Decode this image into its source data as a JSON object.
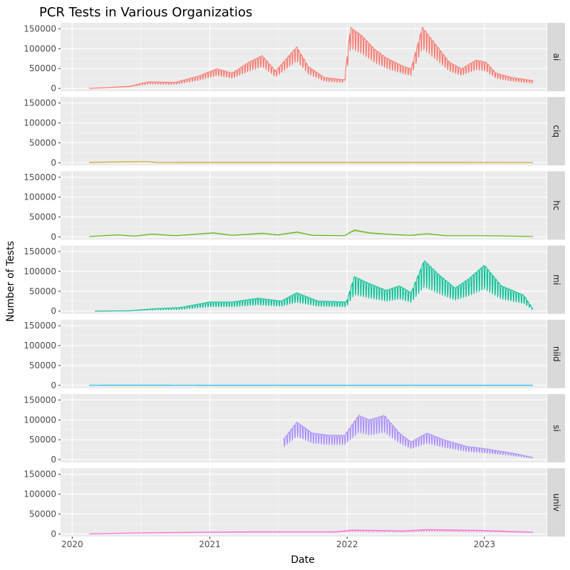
{
  "chart_data": {
    "type": "line",
    "title": "PCR Tests in Various Organizatios",
    "xlabel": "Date",
    "ylabel": "Number of Tests",
    "x_domain": [
      "2019-12-01",
      "2023-06-15"
    ],
    "ylim": [
      -7000,
      165000
    ],
    "y_ticks": [
      {
        "value": 0,
        "label": "0"
      },
      {
        "value": 50000,
        "label": "50000"
      },
      {
        "value": 100000,
        "label": "100000"
      },
      {
        "value": 150000,
        "label": "150000"
      }
    ],
    "x_ticks": [
      {
        "date": "2020-01-01",
        "label": "2020"
      },
      {
        "date": "2021-01-01",
        "label": "2021"
      },
      {
        "date": "2022-01-01",
        "label": "2022"
      },
      {
        "date": "2023-01-01",
        "label": "2023"
      }
    ],
    "grid": true,
    "series": [
      {
        "name": "ai",
        "color": "#F8766D",
        "start": "2020-02-15",
        "end": "2023-05-10",
        "weekly_oscillation": 0.28,
        "points": [
          [
            "2020-02-15",
            0
          ],
          [
            "2020-04-01",
            2000
          ],
          [
            "2020-06-01",
            5000
          ],
          [
            "2020-07-20",
            15000
          ],
          [
            "2020-10-01",
            14000
          ],
          [
            "2020-12-01",
            28000
          ],
          [
            "2021-01-20",
            45000
          ],
          [
            "2021-03-01",
            35000
          ],
          [
            "2021-04-15",
            60000
          ],
          [
            "2021-05-20",
            75000
          ],
          [
            "2021-06-25",
            40000
          ],
          [
            "2021-08-20",
            95000
          ],
          [
            "2021-09-20",
            50000
          ],
          [
            "2021-11-01",
            25000
          ],
          [
            "2021-12-25",
            20000
          ],
          [
            "2022-01-10",
            140000
          ],
          [
            "2022-02-10",
            120000
          ],
          [
            "2022-03-15",
            90000
          ],
          [
            "2022-04-15",
            70000
          ],
          [
            "2022-06-01",
            50000
          ],
          [
            "2022-06-20",
            45000
          ],
          [
            "2022-07-20",
            140000
          ],
          [
            "2022-08-25",
            100000
          ],
          [
            "2022-09-30",
            60000
          ],
          [
            "2022-11-01",
            45000
          ],
          [
            "2022-12-10",
            65000
          ],
          [
            "2023-01-05",
            60000
          ],
          [
            "2023-02-01",
            35000
          ],
          [
            "2023-03-15",
            25000
          ],
          [
            "2023-05-10",
            18000
          ]
        ]
      },
      {
        "name": "ciq",
        "color": "#C49A00",
        "start": "2020-02-15",
        "end": "2023-05-10",
        "weekly_oscillation": 0.05,
        "points": [
          [
            "2020-02-15",
            500
          ],
          [
            "2020-04-15",
            1500
          ],
          [
            "2020-07-15",
            2500
          ],
          [
            "2020-08-15",
            500
          ],
          [
            "2023-05-10",
            300
          ]
        ]
      },
      {
        "name": "hc",
        "color": "#53B400",
        "start": "2020-02-15",
        "end": "2023-05-10",
        "weekly_oscillation": 0.12,
        "points": [
          [
            "2020-02-15",
            1000
          ],
          [
            "2020-05-01",
            5000
          ],
          [
            "2020-06-15",
            2000
          ],
          [
            "2020-08-01",
            7000
          ],
          [
            "2020-10-01",
            3000
          ],
          [
            "2021-01-10",
            10000
          ],
          [
            "2021-03-01",
            4000
          ],
          [
            "2021-05-20",
            9000
          ],
          [
            "2021-07-01",
            5000
          ],
          [
            "2021-08-20",
            12000
          ],
          [
            "2021-10-01",
            4000
          ],
          [
            "2021-12-25",
            3000
          ],
          [
            "2022-01-20",
            17000
          ],
          [
            "2022-03-01",
            10000
          ],
          [
            "2022-05-01",
            6000
          ],
          [
            "2022-06-20",
            4000
          ],
          [
            "2022-08-01",
            8000
          ],
          [
            "2022-09-20",
            3000
          ],
          [
            "2023-01-01",
            3000
          ],
          [
            "2023-05-10",
            1000
          ]
        ]
      },
      {
        "name": "mi",
        "color": "#00C094",
        "start": "2020-03-01",
        "end": "2023-05-10",
        "weekly_oscillation": 0.45,
        "points": [
          [
            "2020-03-01",
            0
          ],
          [
            "2020-06-01",
            1000
          ],
          [
            "2020-08-01",
            5000
          ],
          [
            "2020-10-15",
            8000
          ],
          [
            "2021-01-01",
            20000
          ],
          [
            "2021-03-01",
            20000
          ],
          [
            "2021-05-10",
            28000
          ],
          [
            "2021-07-10",
            22000
          ],
          [
            "2021-08-20",
            40000
          ],
          [
            "2021-10-15",
            22000
          ],
          [
            "2021-12-30",
            20000
          ],
          [
            "2022-01-20",
            75000
          ],
          [
            "2022-03-01",
            60000
          ],
          [
            "2022-04-15",
            45000
          ],
          [
            "2022-05-20",
            55000
          ],
          [
            "2022-06-20",
            40000
          ],
          [
            "2022-07-25",
            110000
          ],
          [
            "2022-09-01",
            80000
          ],
          [
            "2022-10-15",
            50000
          ],
          [
            "2022-11-20",
            70000
          ],
          [
            "2023-01-01",
            100000
          ],
          [
            "2023-02-15",
            55000
          ],
          [
            "2023-04-15",
            35000
          ],
          [
            "2023-05-10",
            5000
          ]
        ]
      },
      {
        "name": "niid",
        "color": "#00B6EB",
        "start": "2020-02-15",
        "end": "2023-05-10",
        "weekly_oscillation": 0.0,
        "points": [
          [
            "2020-02-15",
            200
          ],
          [
            "2020-05-01",
            400
          ],
          [
            "2021-01-01",
            200
          ],
          [
            "2023-05-10",
            200
          ]
        ]
      },
      {
        "name": "si",
        "color": "#A58AFF",
        "start": "2021-07-15",
        "end": "2023-05-10",
        "weekly_oscillation": 0.32,
        "points": [
          [
            "2021-07-15",
            45000
          ],
          [
            "2021-08-20",
            85000
          ],
          [
            "2021-10-01",
            60000
          ],
          [
            "2021-11-15",
            55000
          ],
          [
            "2021-12-25",
            55000
          ],
          [
            "2022-02-01",
            100000
          ],
          [
            "2022-03-01",
            90000
          ],
          [
            "2022-04-10",
            100000
          ],
          [
            "2022-05-20",
            60000
          ],
          [
            "2022-06-20",
            40000
          ],
          [
            "2022-08-01",
            60000
          ],
          [
            "2022-09-15",
            45000
          ],
          [
            "2022-11-15",
            30000
          ],
          [
            "2023-01-01",
            25000
          ],
          [
            "2023-03-15",
            15000
          ],
          [
            "2023-05-10",
            5000
          ]
        ]
      },
      {
        "name": "univ",
        "color": "#FB61D7",
        "start": "2020-02-15",
        "end": "2023-05-10",
        "weekly_oscillation": 0.25,
        "points": [
          [
            "2020-02-15",
            0
          ],
          [
            "2020-06-01",
            2000
          ],
          [
            "2020-12-01",
            4000
          ],
          [
            "2021-06-01",
            5000
          ],
          [
            "2021-12-01",
            5000
          ],
          [
            "2022-01-15",
            9000
          ],
          [
            "2022-06-01",
            7000
          ],
          [
            "2022-08-01",
            10000
          ],
          [
            "2023-01-01",
            8000
          ],
          [
            "2023-05-10",
            4000
          ]
        ]
      }
    ]
  }
}
